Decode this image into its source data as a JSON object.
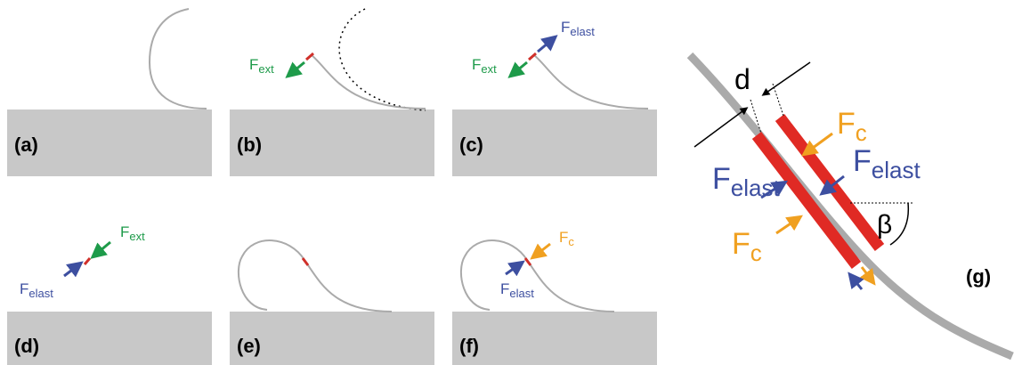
{
  "panels": [
    {
      "label": "(a)"
    },
    {
      "label": "(b)",
      "forces": [
        {
          "main": "F",
          "sub": "ext"
        }
      ]
    },
    {
      "label": "(c)",
      "forces": [
        {
          "main": "F",
          "sub": "ext"
        },
        {
          "main": "F",
          "sub": "elast"
        }
      ]
    },
    {
      "label": "(d)",
      "forces": [
        {
          "main": "F",
          "sub": "ext"
        },
        {
          "main": "F",
          "sub": "elast"
        }
      ]
    },
    {
      "label": "(e)"
    },
    {
      "label": "(f)",
      "forces": [
        {
          "main": "F",
          "sub": "c"
        },
        {
          "main": "F",
          "sub": "elast"
        }
      ]
    },
    {
      "label": "(g)",
      "distance": "d",
      "angle": "β",
      "forces": [
        {
          "main": "F",
          "sub": "c"
        },
        {
          "main": "F",
          "sub": "elast"
        },
        {
          "main": "F",
          "sub": "elast"
        },
        {
          "main": "F",
          "sub": "c"
        }
      ]
    }
  ]
}
